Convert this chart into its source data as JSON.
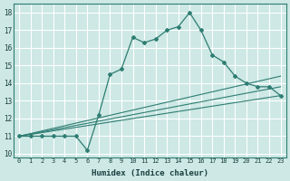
{
  "xlabel": "Humidex (Indice chaleur)",
  "bg_color": "#cde8e5",
  "grid_color": "#ffffff",
  "line_color": "#2e7d72",
  "xlim": [
    -0.5,
    23.5
  ],
  "ylim": [
    9.8,
    18.5
  ],
  "xticks": [
    0,
    1,
    2,
    3,
    4,
    5,
    6,
    7,
    8,
    9,
    10,
    11,
    12,
    13,
    14,
    15,
    16,
    17,
    18,
    19,
    20,
    21,
    22,
    23
  ],
  "yticks": [
    10,
    11,
    12,
    13,
    14,
    15,
    16,
    17,
    18
  ],
  "series": [
    {
      "x": [
        0,
        23
      ],
      "y": [
        11,
        13.3
      ],
      "marker": false
    },
    {
      "x": [
        0,
        23
      ],
      "y": [
        11,
        13.8
      ],
      "marker": false
    },
    {
      "x": [
        0,
        23
      ],
      "y": [
        11,
        14.4
      ],
      "marker": false
    },
    {
      "x": [
        0,
        1,
        2,
        3,
        4,
        5,
        6,
        7,
        8,
        9,
        10,
        11,
        12,
        13,
        14,
        15,
        16,
        17,
        18,
        19,
        20,
        21,
        22,
        23
      ],
      "y": [
        11,
        11,
        11,
        11,
        11,
        11,
        10.2,
        12.2,
        14.5,
        14.8,
        16.6,
        16.3,
        16.5,
        17.0,
        17.2,
        18.0,
        17.0,
        15.6,
        15.2,
        14.4,
        14.0,
        13.8,
        13.8,
        13.3
      ],
      "marker": true
    }
  ]
}
